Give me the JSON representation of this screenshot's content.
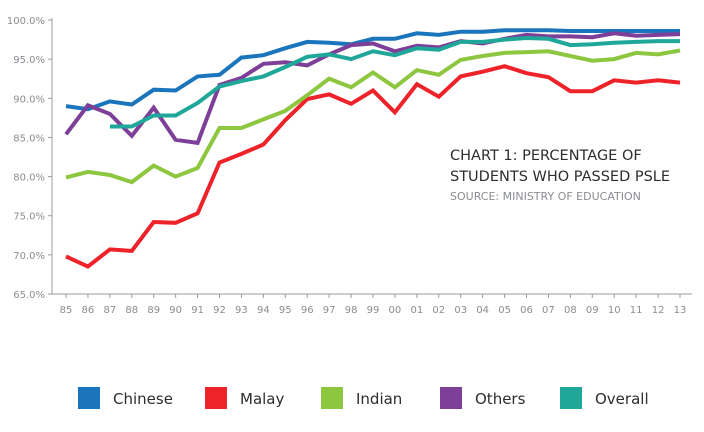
{
  "chart_data": {
    "type": "line",
    "title_lines": [
      "CHART 1: PERCENTAGE OF",
      "STUDENTS WHO PASSED PSLE"
    ],
    "subtitle": "SOURCE: MINISTRY OF EDUCATION",
    "x": [
      "85",
      "86",
      "87",
      "88",
      "89",
      "90",
      "91",
      "92",
      "93",
      "94",
      "95",
      "96",
      "97",
      "98",
      "99",
      "00",
      "01",
      "02",
      "03",
      "04",
      "05",
      "06",
      "07",
      "08",
      "09",
      "10",
      "11",
      "12",
      "13"
    ],
    "ylim": [
      65,
      100
    ],
    "yticks": [
      65,
      70,
      75,
      80,
      85,
      90,
      95,
      100
    ],
    "ytick_labels": [
      "65.0%",
      "70.0%",
      "75.0%",
      "80.0%",
      "85.0%",
      "90.0%",
      "95.0%",
      "100.0%"
    ],
    "grid": false,
    "legend_position": "bottom",
    "series": [
      {
        "name": "Chinese",
        "color": "#1a75bc",
        "values": [
          89.0,
          88.6,
          89.6,
          89.2,
          91.1,
          91.0,
          92.8,
          93.0,
          95.2,
          95.5,
          96.4,
          97.2,
          97.1,
          96.9,
          97.6,
          97.6,
          98.3,
          98.1,
          98.5,
          98.5,
          98.7,
          98.7,
          98.7,
          98.6,
          98.6,
          98.6,
          98.6,
          98.6,
          98.6
        ]
      },
      {
        "name": "Malay",
        "color": "#ee2229",
        "values": [
          69.8,
          68.5,
          70.7,
          70.5,
          74.2,
          74.1,
          75.3,
          81.8,
          82.9,
          84.1,
          87.2,
          89.9,
          90.5,
          89.3,
          91.0,
          88.2,
          91.8,
          90.2,
          92.8,
          93.4,
          94.1,
          93.2,
          92.7,
          90.9,
          90.9,
          92.3,
          92.0,
          92.3,
          92.0
        ]
      },
      {
        "name": "Indian",
        "color": "#8dc63f",
        "values": [
          79.9,
          80.6,
          80.2,
          79.3,
          81.4,
          80.0,
          81.1,
          86.2,
          86.2,
          87.3,
          88.4,
          90.4,
          92.5,
          91.4,
          93.3,
          91.4,
          93.6,
          93.0,
          94.9,
          95.4,
          95.8,
          95.9,
          96.0,
          95.4,
          94.8,
          95.0,
          95.8,
          95.6,
          96.1
        ]
      },
      {
        "name": "Others",
        "color": "#7d3f98",
        "values": [
          85.4,
          89.1,
          88.0,
          85.2,
          88.8,
          84.7,
          84.3,
          91.7,
          92.6,
          94.4,
          94.6,
          94.2,
          95.6,
          96.8,
          97.0,
          96.0,
          96.7,
          96.5,
          97.3,
          97.0,
          97.6,
          98.1,
          97.9,
          97.9,
          97.8,
          98.3,
          98.0,
          98.1,
          98.2
        ]
      },
      {
        "name": "Overall",
        "color": "#1fa79a",
        "values": [
          null,
          null,
          86.4,
          86.4,
          87.8,
          87.8,
          89.4,
          91.5,
          92.2,
          92.8,
          94.0,
          95.3,
          95.6,
          95.0,
          96.0,
          95.5,
          96.4,
          96.2,
          97.2,
          97.2,
          97.5,
          97.7,
          97.6,
          96.8,
          96.9,
          97.1,
          97.2,
          97.3,
          97.3
        ]
      }
    ]
  }
}
